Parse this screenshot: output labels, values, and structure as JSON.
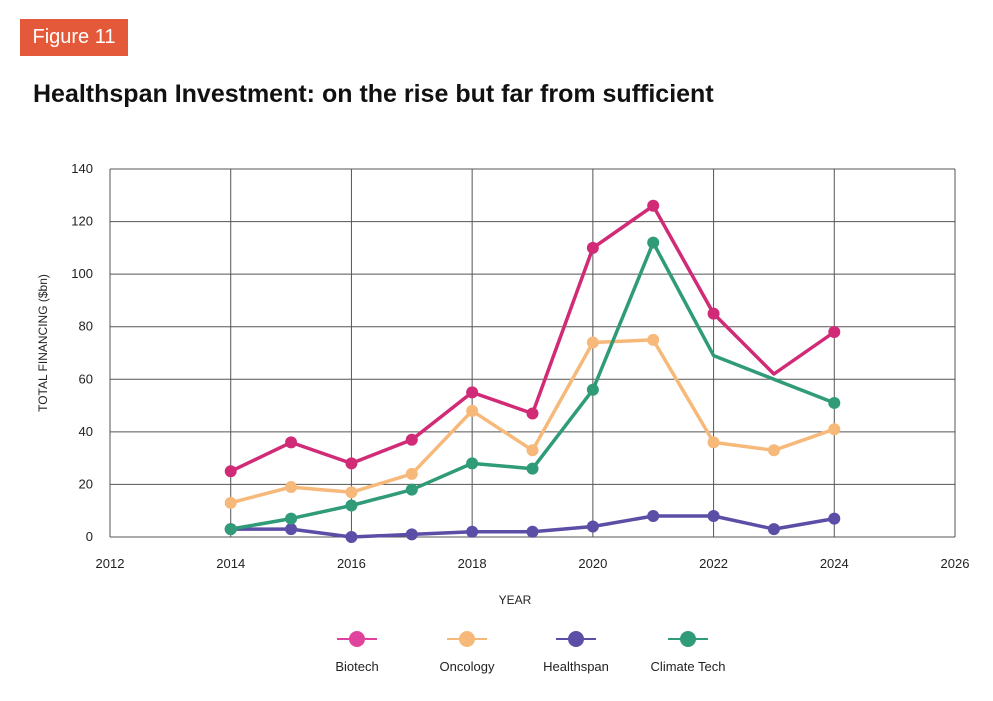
{
  "figure_label": "Figure 11",
  "chart_data": {
    "type": "line",
    "title": "Healthspan Investment: on the rise but far from sufficient",
    "xlabel": "YEAR",
    "ylabel": "TOTAL FINANCING ($bn)",
    "xlim": [
      2012,
      2026
    ],
    "ylim": [
      0,
      140
    ],
    "x_ticks": [
      2012,
      2014,
      2016,
      2018,
      2020,
      2022,
      2024,
      2026
    ],
    "y_ticks": [
      0,
      20,
      40,
      60,
      80,
      100,
      120,
      140
    ],
    "x_tick_labels": [
      "2012",
      "2014",
      "2016",
      "2018",
      "2020",
      "2022",
      "2024",
      "2026"
    ],
    "y_tick_labels": [
      "0",
      "20",
      "40",
      "60",
      "80",
      "100",
      "120",
      "140"
    ],
    "grid": true,
    "legend_position": "bottom-center",
    "series": [
      {
        "name": "Biotech",
        "color": "#d12a77",
        "legend_color": "#e0439b",
        "x": [
          2014,
          2015,
          2016,
          2017,
          2018,
          2019,
          2020,
          2021,
          2022,
          2023,
          2024
        ],
        "values": [
          25,
          36,
          28,
          37,
          55,
          47,
          110,
          126,
          85,
          62,
          78
        ],
        "markers": [
          true,
          true,
          true,
          true,
          true,
          true,
          true,
          true,
          true,
          false,
          true
        ]
      },
      {
        "name": "Oncology",
        "color": "#f7b97a",
        "legend_color": "#f7b97a",
        "x": [
          2014,
          2015,
          2016,
          2017,
          2018,
          2019,
          2020,
          2021,
          2022,
          2023,
          2024
        ],
        "values": [
          13,
          19,
          17,
          24,
          48,
          33,
          74,
          75,
          36,
          33,
          41
        ],
        "markers": [
          true,
          true,
          true,
          true,
          true,
          true,
          true,
          true,
          true,
          true,
          true
        ]
      },
      {
        "name": "Healthspan",
        "color": "#5a4ea6",
        "legend_color": "#5a4ea6",
        "x": [
          2014,
          2015,
          2016,
          2017,
          2018,
          2019,
          2020,
          2021,
          2022,
          2023,
          2024
        ],
        "values": [
          3,
          3,
          0,
          1,
          2,
          2,
          4,
          8,
          8,
          3,
          7
        ],
        "markers": [
          true,
          true,
          true,
          true,
          true,
          true,
          true,
          true,
          true,
          true,
          true
        ]
      },
      {
        "name": "Climate Tech",
        "color": "#2f9b78",
        "legend_color": "#2f9b78",
        "x": [
          2014,
          2015,
          2016,
          2017,
          2018,
          2019,
          2020,
          2021,
          2022,
          2023,
          2024
        ],
        "values": [
          3,
          7,
          12,
          18,
          28,
          26,
          56,
          112,
          69,
          60,
          51
        ],
        "markers": [
          true,
          true,
          true,
          true,
          true,
          true,
          true,
          true,
          false,
          false,
          true
        ]
      }
    ]
  }
}
